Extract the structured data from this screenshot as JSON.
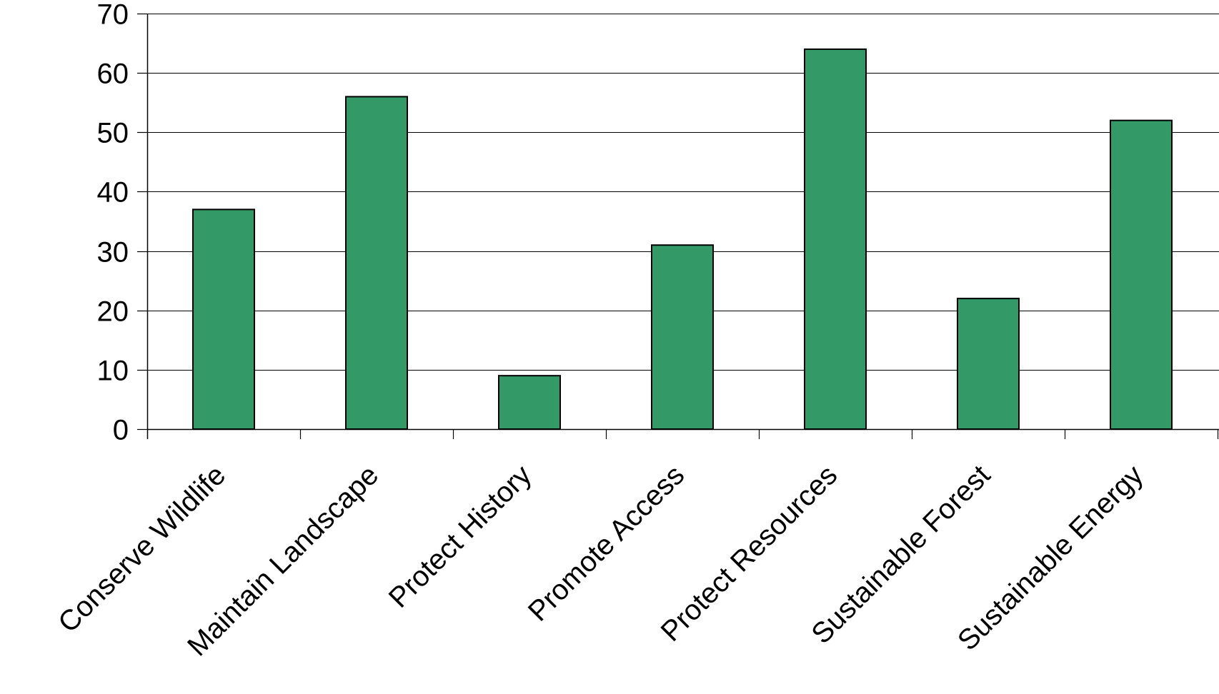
{
  "chart_data": {
    "type": "bar",
    "categories": [
      "Conserve Wildlife",
      "Maintain Landscape",
      "Protect History",
      "Promote Access",
      "Protect Resources",
      "Sustainable Forest",
      "Sustainable Energy"
    ],
    "values": [
      37,
      56,
      9,
      31,
      64,
      22,
      52
    ],
    "ylim": [
      0,
      70
    ],
    "yticks": [
      0,
      10,
      20,
      30,
      40,
      50,
      60,
      70
    ],
    "grid": true,
    "legend": "none",
    "colors": {
      "bar_fill": "#339966",
      "bar_stroke": "#000000",
      "grid": "#000000",
      "axis": "#000000",
      "text": "#000000"
    }
  }
}
